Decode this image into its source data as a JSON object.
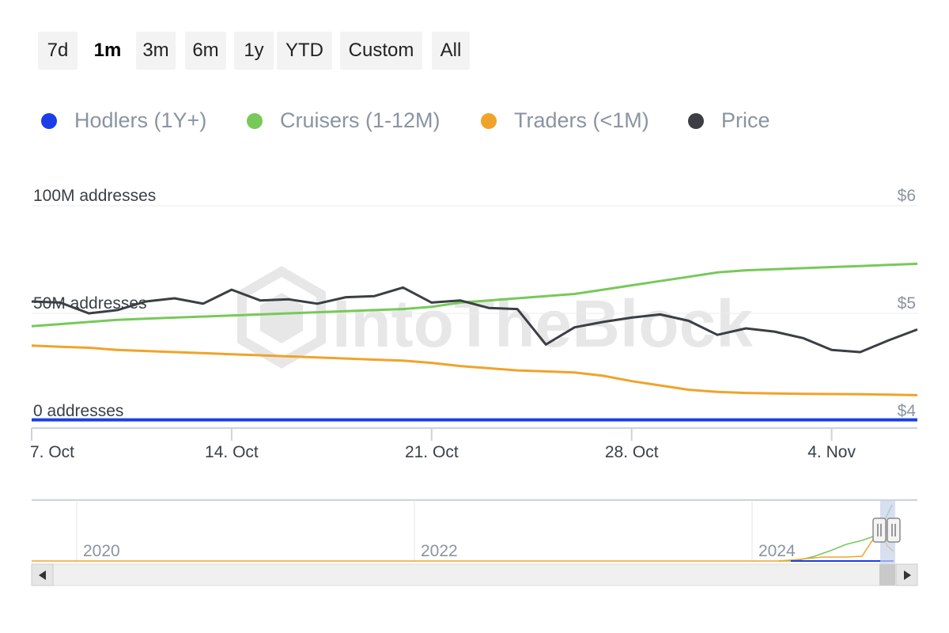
{
  "range_selector": {
    "buttons": [
      "7d",
      "1m",
      "3m",
      "6m",
      "1y",
      "YTD",
      "Custom",
      "All"
    ],
    "active": "1m"
  },
  "legend": {
    "items": [
      {
        "label": "Hodlers (1Y+)",
        "color": "#1a3ee8"
      },
      {
        "label": "Cruisers (1-12M)",
        "color": "#77c95a"
      },
      {
        "label": "Traders (<1M)",
        "color": "#f0a32a"
      },
      {
        "label": "Price",
        "color": "#3b3f44"
      }
    ]
  },
  "watermark": "IntoTheBlock",
  "chart_data": {
    "type": "line",
    "x": [
      "2024-10-07",
      "2024-10-08",
      "2024-10-09",
      "2024-10-10",
      "2024-10-11",
      "2024-10-12",
      "2024-10-13",
      "2024-10-14",
      "2024-10-15",
      "2024-10-16",
      "2024-10-17",
      "2024-10-18",
      "2024-10-19",
      "2024-10-20",
      "2024-10-21",
      "2024-10-22",
      "2024-10-23",
      "2024-10-24",
      "2024-10-25",
      "2024-10-26",
      "2024-10-27",
      "2024-10-28",
      "2024-10-29",
      "2024-10-30",
      "2024-10-31",
      "2024-11-01",
      "2024-11-02",
      "2024-11-03",
      "2024-11-04",
      "2024-11-05",
      "2024-11-06",
      "2024-11-07"
    ],
    "x_ticks": [
      "7. Oct",
      "14. Oct",
      "21. Oct",
      "28. Oct",
      "4. Nov"
    ],
    "y_left": {
      "ticks": [
        "0 addresses",
        "50M addresses",
        "100M addresses"
      ],
      "range": [
        0,
        100000000
      ]
    },
    "y_right": {
      "ticks": [
        "$4",
        "$5",
        "$6"
      ],
      "range": [
        4,
        6
      ]
    },
    "series": [
      {
        "name": "Hodlers (1Y+)",
        "axis": "left",
        "color": "#1a3ee8",
        "values": [
          500000,
          500000,
          500000,
          500000,
          500000,
          500000,
          500000,
          500000,
          500000,
          500000,
          500000,
          500000,
          500000,
          500000,
          500000,
          500000,
          500000,
          500000,
          500000,
          500000,
          500000,
          500000,
          500000,
          500000,
          500000,
          500000,
          500000,
          500000,
          500000,
          500000,
          500000,
          500000
        ]
      },
      {
        "name": "Cruisers (1-12M)",
        "axis": "left",
        "color": "#77c95a",
        "values": [
          44000000,
          45000000,
          46000000,
          47000000,
          47500000,
          48000000,
          48500000,
          49000000,
          49500000,
          50000000,
          50500000,
          51000000,
          51500000,
          52000000,
          53000000,
          55000000,
          56000000,
          57000000,
          58000000,
          59000000,
          61000000,
          63000000,
          65000000,
          67000000,
          69000000,
          70000000,
          70500000,
          71000000,
          71500000,
          72000000,
          72500000,
          73000000
        ]
      },
      {
        "name": "Traders (<1M)",
        "axis": "left",
        "color": "#f0a32a",
        "values": [
          35000000,
          34500000,
          34000000,
          33000000,
          32500000,
          32000000,
          31500000,
          31000000,
          30500000,
          30000000,
          29500000,
          29000000,
          28500000,
          28000000,
          27000000,
          25500000,
          24500000,
          23500000,
          23000000,
          22500000,
          21000000,
          18500000,
          16500000,
          14500000,
          13500000,
          13000000,
          12800000,
          12600000,
          12500000,
          12400000,
          12200000,
          12000000
        ]
      },
      {
        "name": "Price",
        "axis": "right",
        "color": "#3b3f44",
        "values": [
          5.11,
          5.1,
          5.0,
          5.03,
          5.11,
          5.14,
          5.09,
          5.22,
          5.12,
          5.13,
          5.09,
          5.15,
          5.16,
          5.24,
          5.1,
          5.12,
          5.05,
          5.04,
          4.71,
          4.87,
          4.92,
          4.96,
          4.99,
          4.93,
          4.8,
          4.86,
          4.83,
          4.77,
          4.66,
          4.64,
          4.75,
          4.85
        ]
      }
    ],
    "navigator": {
      "x_ticks": [
        "2020",
        "2022",
        "2024"
      ]
    }
  }
}
